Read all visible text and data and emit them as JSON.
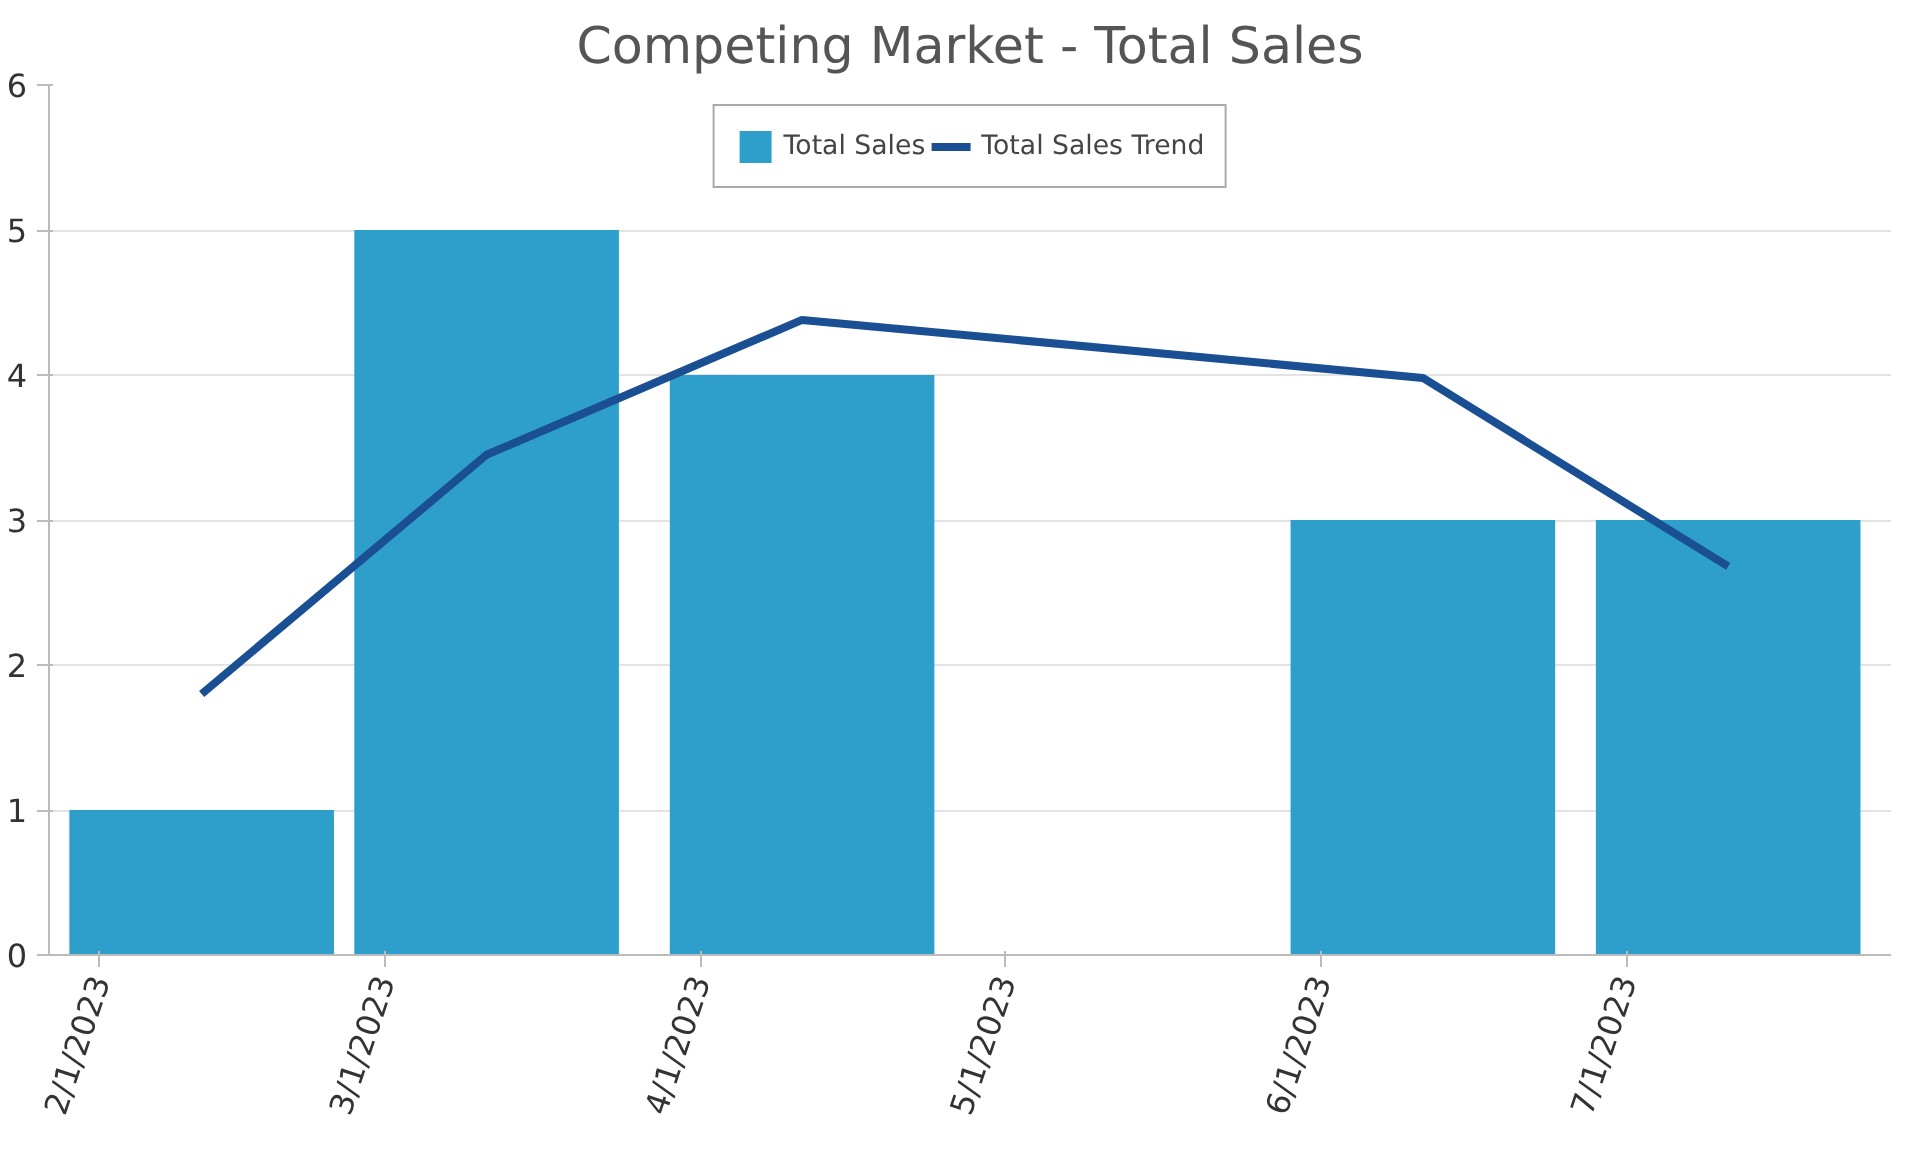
{
  "chart_data": {
    "type": "bar",
    "title": "Competing Market - Total Sales",
    "x": [
      "2023-02-11",
      "2023-03-11",
      "2023-04-11",
      "2023-06-11",
      "2023-07-11"
    ],
    "series": [
      {
        "name": "Total Sales",
        "color": "#2e9fcb",
        "values": [
          1,
          5,
          4,
          3,
          3
        ]
      },
      {
        "name": "Total Sales Trend",
        "type": "line",
        "color": "#1a4f94",
        "values": [
          1.8,
          3.45,
          4.38,
          3.98,
          2.68
        ]
      }
    ],
    "xlim": [
      "2023-01-27",
      "2023-07-27"
    ],
    "xticks": [
      {
        "value": "2023-02-01",
        "label": "2/1/2023"
      },
      {
        "value": "2023-03-01",
        "label": "3/1/2023"
      },
      {
        "value": "2023-04-01",
        "label": "4/1/2023"
      },
      {
        "value": "2023-05-01",
        "label": "5/1/2023"
      },
      {
        "value": "2023-06-01",
        "label": "6/1/2023"
      },
      {
        "value": "2023-07-01",
        "label": "7/1/2023"
      }
    ],
    "ylim": [
      0,
      6
    ],
    "yticks": [
      0,
      1,
      2,
      3,
      4,
      5,
      6
    ],
    "grid": "y",
    "legend": "top",
    "line_style": "solid"
  }
}
